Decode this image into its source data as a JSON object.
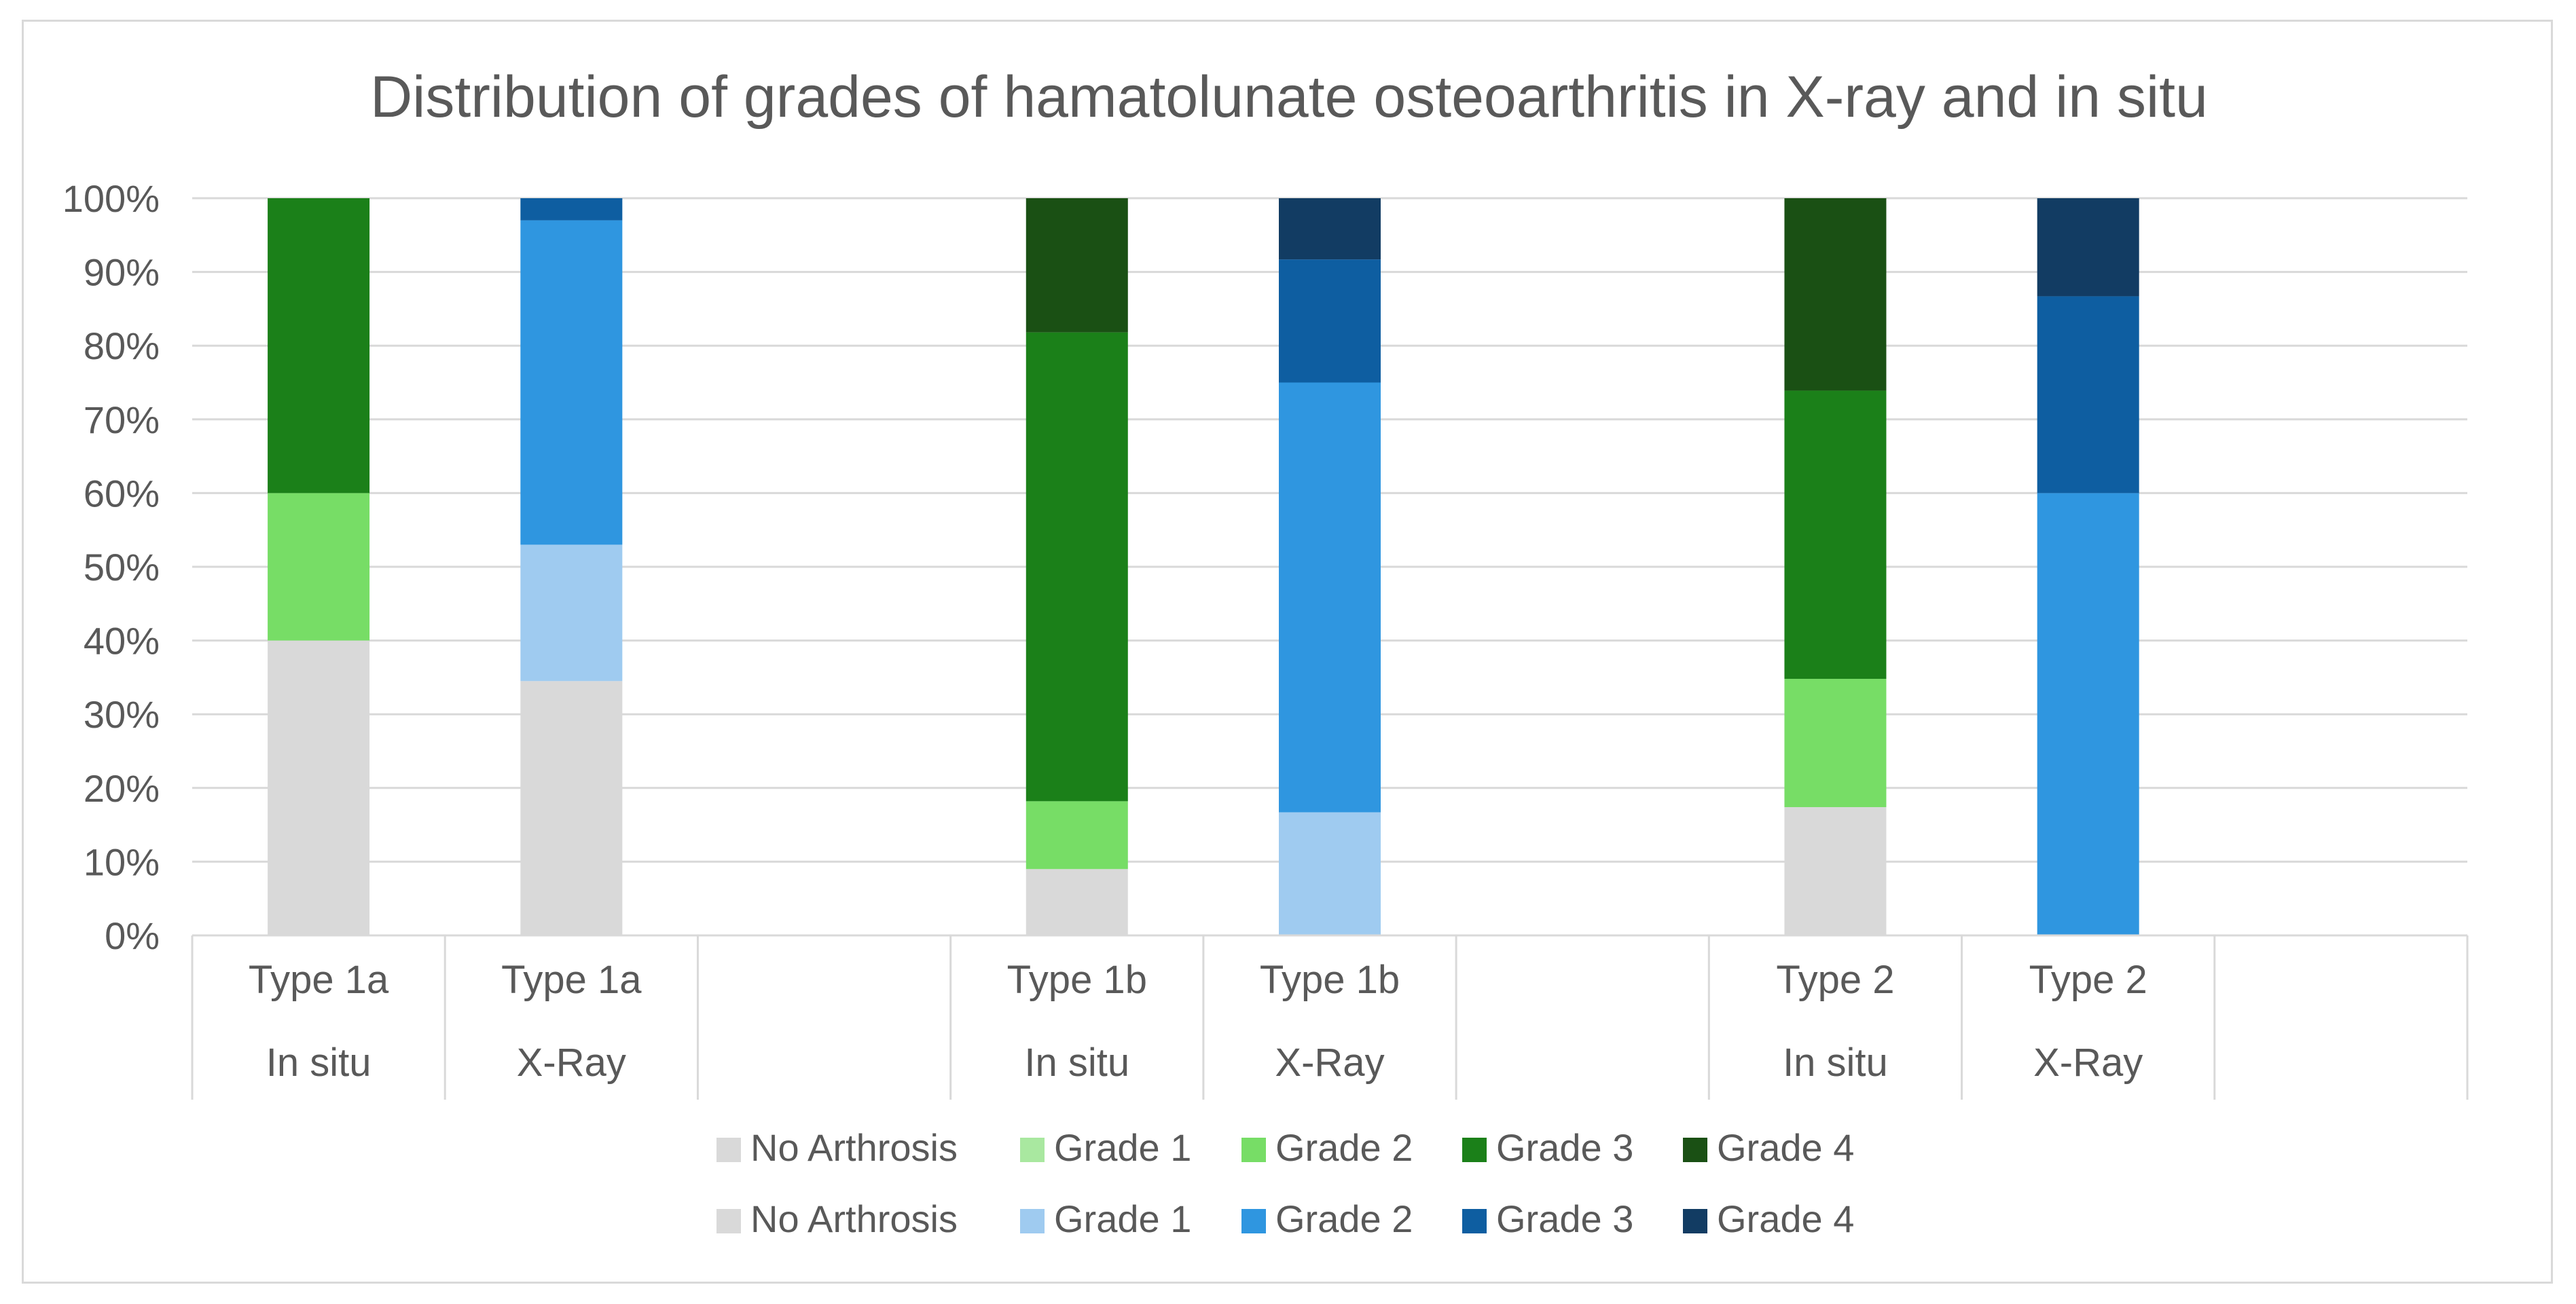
{
  "chart_data": {
    "type": "bar",
    "stacked": true,
    "title": "Distribution of grades of hamatolunate osteoarthritis in X-ray and in situ",
    "xlabel": "",
    "ylabel": "",
    "ylim": [
      0,
      100
    ],
    "y_ticks": [
      0,
      10,
      20,
      30,
      40,
      50,
      60,
      70,
      80,
      90,
      100
    ],
    "y_tick_labels": [
      "0%",
      "10%",
      "20%",
      "30%",
      "40%",
      "50%",
      "60%",
      "70%",
      "80%",
      "90%",
      "100%"
    ],
    "grid": true,
    "groups": [
      {
        "name": "Type 1a",
        "bars": [
          {
            "label": "In situ",
            "set": "in_situ"
          },
          {
            "label": "X-Ray",
            "set": "xray"
          }
        ]
      },
      {
        "name": "Type 1b",
        "bars": [
          {
            "label": "In situ",
            "set": "in_situ"
          },
          {
            "label": "X-Ray",
            "set": "xray"
          }
        ]
      },
      {
        "name": "Type 2",
        "bars": [
          {
            "label": "In situ",
            "set": "in_situ"
          },
          {
            "label": "X-Ray",
            "set": "xray"
          }
        ]
      }
    ],
    "categories": [
      "Type 1a In situ",
      "Type 1a X-Ray",
      "Type 1b In situ",
      "Type 1b X-Ray",
      "Type 2 In situ",
      "Type 2 X-Ray"
    ],
    "series_sets": {
      "in_situ": [
        {
          "name": "No Arthrosis",
          "color": "#d9d9d9",
          "values": [
            40,
            9,
            17.4
          ]
        },
        {
          "name": "Grade 1",
          "color": "#a9e8a0",
          "values": [
            0,
            0,
            0
          ]
        },
        {
          "name": "Grade 2",
          "color": "#77dd66",
          "values": [
            20,
            9.2,
            17.4
          ]
        },
        {
          "name": "Grade 3",
          "color": "#1b8019",
          "values": [
            40,
            63.6,
            39.1
          ]
        },
        {
          "name": "Grade 4",
          "color": "#1a5014",
          "values": [
            0,
            18.2,
            26.1
          ]
        }
      ],
      "xray": [
        {
          "name": "No Arthrosis",
          "color": "#d9d9d9",
          "values": [
            34.5,
            0,
            0
          ]
        },
        {
          "name": "Grade 1",
          "color": "#9fcbf0",
          "values": [
            18.5,
            16.7,
            0
          ]
        },
        {
          "name": "Grade 2",
          "color": "#2f96e0",
          "values": [
            44,
            58.3,
            60
          ]
        },
        {
          "name": "Grade 3",
          "color": "#0e5ea1",
          "values": [
            3,
            16.7,
            26.7
          ]
        },
        {
          "name": "Grade 4",
          "color": "#123c63",
          "values": [
            0,
            8.3,
            13.3
          ]
        }
      ]
    },
    "legend": {
      "position": "bottom",
      "rows": [
        [
          "No Arthrosis",
          "Grade 1",
          "Grade 2",
          "Grade 3",
          "Grade 4"
        ],
        [
          "No Arthrosis",
          "Grade 1",
          "Grade 2",
          "Grade 3",
          "Grade 4"
        ]
      ]
    }
  }
}
